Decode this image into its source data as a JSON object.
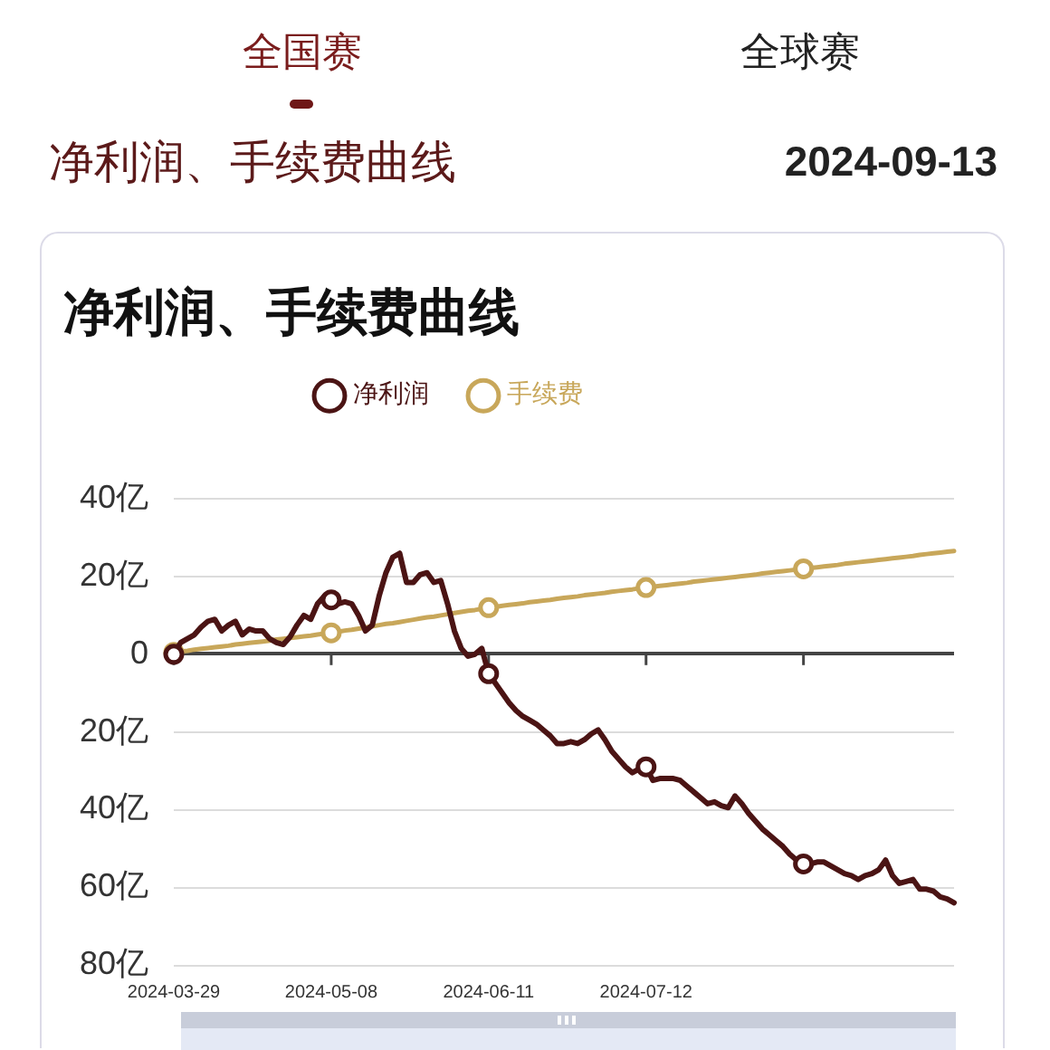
{
  "chart_data": {
    "type": "line",
    "title": "净利润、手续费曲线",
    "annotations": [
      "全国赛",
      "全球赛",
      "净利润、手续费曲线",
      "2024-09-13"
    ],
    "categories": [
      "2024-03-29",
      null,
      null,
      null,
      null,
      null,
      null,
      null,
      null,
      null,
      null,
      null,
      null,
      null,
      null,
      null,
      null,
      null,
      null,
      null,
      null,
      null,
      null,
      "2024-05-08",
      null,
      null,
      null,
      null,
      null,
      null,
      null,
      null,
      null,
      null,
      null,
      null,
      null,
      null,
      null,
      null,
      null,
      null,
      null,
      null,
      null,
      null,
      "2024-06-11",
      null,
      null,
      null,
      null,
      null,
      null,
      null,
      null,
      null,
      null,
      null,
      null,
      null,
      null,
      null,
      null,
      null,
      null,
      null,
      null,
      null,
      null,
      "2024-07-12",
      null,
      null,
      null,
      null,
      null,
      null,
      null,
      null,
      null,
      null,
      null,
      null,
      null,
      null,
      null,
      null,
      null,
      null,
      null,
      null,
      null,
      null,
      null,
      null,
      null,
      null,
      null,
      null,
      null,
      null,
      null,
      null,
      null,
      null,
      null,
      null,
      null,
      null,
      null,
      null,
      null,
      null,
      null,
      null,
      null
    ],
    "series": [
      {
        "name": "净利润",
        "color": "#4b1414",
        "values": [
          0,
          3,
          4,
          5,
          7,
          8.5,
          9,
          6,
          7.5,
          8.5,
          5,
          6.5,
          6,
          6,
          4,
          3,
          2.5,
          4.5,
          7.5,
          10,
          9,
          13,
          15,
          14,
          13,
          13.5,
          13,
          10,
          6,
          7.5,
          15,
          21,
          25,
          26,
          18.5,
          18.5,
          20.5,
          21,
          18.5,
          19,
          13,
          6,
          1.5,
          -0.5,
          0,
          1.5,
          -5,
          -7.5,
          -10,
          -12.5,
          -14.5,
          -16,
          -17,
          -18,
          -19.5,
          -21,
          -23,
          -23,
          -22.5,
          -23,
          -22,
          -20.5,
          -19.5,
          -22,
          -25,
          -27,
          -29,
          -30.5,
          -29.5,
          -29,
          -32.5,
          -32,
          -32,
          -32,
          -32.5,
          -34,
          -35.5,
          -37,
          -38.5,
          -38,
          -39,
          -39.5,
          -36.5,
          -38.5,
          -41,
          -43,
          -45,
          -46.5,
          -48,
          -49.5,
          -51.5,
          -53,
          -54,
          -54,
          -53.5,
          -53.5,
          -54.5,
          -55.5,
          -56.5,
          -57,
          -58,
          -57,
          -56.5,
          -55.5,
          -53,
          -57,
          -59,
          -58.5,
          -58,
          -60.5,
          -60.5,
          -61,
          -62.5,
          -63,
          -64
        ]
      },
      {
        "name": "手续费",
        "color": "#c8a75a",
        "values": [
          0.5,
          0.7,
          0.9,
          1.2,
          1.4,
          1.6,
          1.8,
          2.0,
          2.2,
          2.5,
          2.7,
          2.9,
          3.1,
          3.3,
          3.5,
          3.8,
          4.0,
          4.2,
          4.4,
          4.6,
          4.8,
          5.1,
          5.3,
          5.5,
          5.8,
          6.1,
          6.3,
          6.6,
          6.9,
          7.2,
          7.5,
          7.8,
          8.0,
          8.3,
          8.6,
          8.9,
          9.2,
          9.5,
          9.7,
          10.0,
          10.3,
          10.6,
          10.9,
          11.2,
          11.4,
          11.7,
          12.0,
          12.2,
          12.5,
          12.7,
          12.9,
          13.1,
          13.4,
          13.6,
          13.8,
          14.0,
          14.3,
          14.5,
          14.7,
          14.9,
          15.2,
          15.4,
          15.6,
          15.8,
          16.1,
          16.3,
          16.5,
          16.7,
          17.0,
          17.2,
          17.4,
          17.6,
          17.8,
          18.0,
          18.2,
          18.4,
          18.7,
          18.9,
          19.1,
          19.3,
          19.5,
          19.7,
          19.9,
          20.1,
          20.3,
          20.5,
          20.8,
          21.0,
          21.2,
          21.4,
          21.6,
          21.8,
          22.0,
          22.2,
          22.4,
          22.6,
          22.8,
          23.0,
          23.3,
          23.5,
          23.7,
          23.9,
          24.1,
          24.3,
          24.5,
          24.7,
          24.9,
          25.1,
          25.3,
          25.6,
          25.8,
          26.0,
          26.2,
          26.4,
          26.6
        ]
      }
    ],
    "ylim": [
      -80,
      40
    ],
    "yticks": [
      {
        "value": 40,
        "label": "40亿"
      },
      {
        "value": 20,
        "label": "20亿"
      },
      {
        "value": 0,
        "label": "0"
      },
      {
        "value": -20,
        "label": "20亿"
      },
      {
        "value": -40,
        "label": "40亿"
      },
      {
        "value": -60,
        "label": "60亿"
      },
      {
        "value": -80,
        "label": "80亿"
      }
    ],
    "grid": "y",
    "legend": "top"
  }
}
